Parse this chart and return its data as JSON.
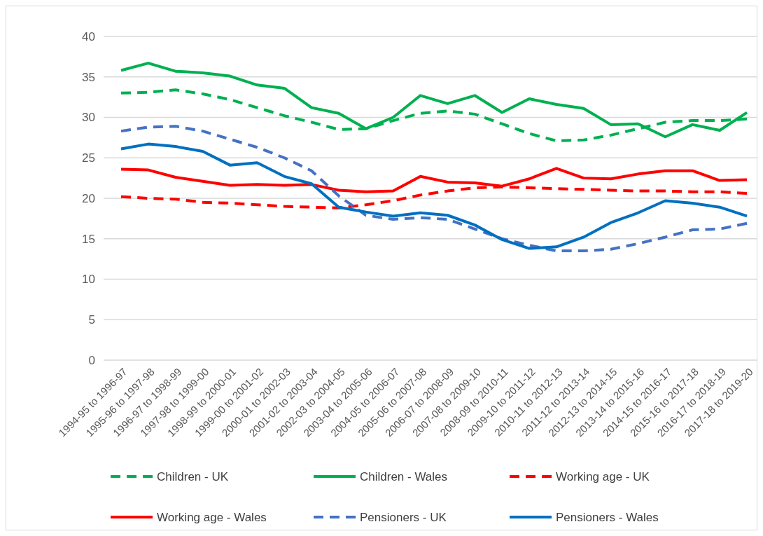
{
  "chart_data": {
    "type": "line",
    "categories": [
      "1994-95 to 1996-97",
      "1995-96 to 1997-98",
      "1996-97 to 1998-99",
      "1997-98 to 1999-00",
      "1998-99 to 2000-01",
      "1999-00 to 2001-02",
      "2000-01 to 2002-03",
      "2001-02 to 2003-04",
      "2002-03 to 2004-05",
      "2003-04 to 2005-06",
      "2004-05 to 2006-07",
      "2005-06 to 2007-08",
      "2006-07 to 2008-09",
      "2007-08 to 2009-10",
      "2008-09 to 2010-11",
      "2009-10 to 2011-12",
      "2010-11 to 2012-13",
      "2011-12 to 2013-14",
      "2012-13 to 2014-15",
      "2013-14 to 2015-16",
      "2014-15 to 2016-17",
      "2015-16 to 2017-18",
      "2016-17 to 2018-19",
      "2017-18 to 2019-20"
    ],
    "series": [
      {
        "name": "Children - UK",
        "color": "#00b050",
        "line_style": "dashed",
        "values": [
          33.0,
          33.1,
          33.4,
          32.9,
          32.2,
          31.2,
          30.2,
          29.4,
          28.5,
          28.6,
          29.6,
          30.5,
          30.8,
          30.4,
          29.2,
          28.0,
          27.1,
          27.2,
          27.8,
          28.6,
          29.4,
          29.6,
          29.6,
          29.8
        ]
      },
      {
        "name": "Children - Wales",
        "color": "#00b050",
        "line_style": "solid",
        "values": [
          35.8,
          36.7,
          35.7,
          35.5,
          35.1,
          34.0,
          33.6,
          31.2,
          30.5,
          28.6,
          30.0,
          32.7,
          31.7,
          32.7,
          30.6,
          32.3,
          31.6,
          31.1,
          29.1,
          29.2,
          27.6,
          29.1,
          28.4,
          30.6
        ]
      },
      {
        "name": "Working age - UK",
        "color": "#ff0000",
        "line_style": "dashed",
        "values": [
          20.2,
          20.0,
          19.9,
          19.5,
          19.4,
          19.2,
          19.0,
          18.9,
          18.8,
          19.2,
          19.7,
          20.4,
          20.9,
          21.3,
          21.4,
          21.3,
          21.2,
          21.1,
          21.0,
          20.9,
          20.9,
          20.8,
          20.8,
          20.6
        ]
      },
      {
        "name": "Working age - Wales",
        "color": "#ff0000",
        "line_style": "solid",
        "values": [
          23.6,
          23.5,
          22.6,
          22.1,
          21.6,
          21.7,
          21.6,
          21.7,
          21.0,
          20.8,
          20.9,
          22.7,
          22.0,
          21.9,
          21.5,
          22.4,
          23.7,
          22.5,
          22.4,
          23.0,
          23.4,
          23.4,
          22.2,
          22.3
        ]
      },
      {
        "name": "Pensioners - UK",
        "color": "#4472c4",
        "line_style": "dashed",
        "values": [
          28.3,
          28.8,
          28.9,
          28.3,
          27.3,
          26.3,
          25.0,
          23.4,
          20.3,
          17.9,
          17.4,
          17.6,
          17.4,
          16.2,
          15.0,
          14.2,
          13.5,
          13.5,
          13.7,
          14.4,
          15.2,
          16.1,
          16.2,
          16.9
        ]
      },
      {
        "name": "Pensioners - Wales",
        "color": "#0070c0",
        "line_style": "solid",
        "values": [
          26.1,
          26.7,
          26.4,
          25.8,
          24.1,
          24.4,
          22.7,
          21.8,
          18.9,
          18.3,
          17.8,
          18.2,
          17.9,
          16.7,
          14.9,
          13.8,
          14.0,
          15.2,
          17.0,
          18.2,
          19.7,
          19.4,
          18.9,
          17.8
        ]
      }
    ],
    "ylim": [
      0,
      40
    ],
    "yticks": [
      0,
      5,
      10,
      15,
      20,
      25,
      30,
      35,
      40
    ],
    "grid": "y",
    "legend": "bottom"
  }
}
